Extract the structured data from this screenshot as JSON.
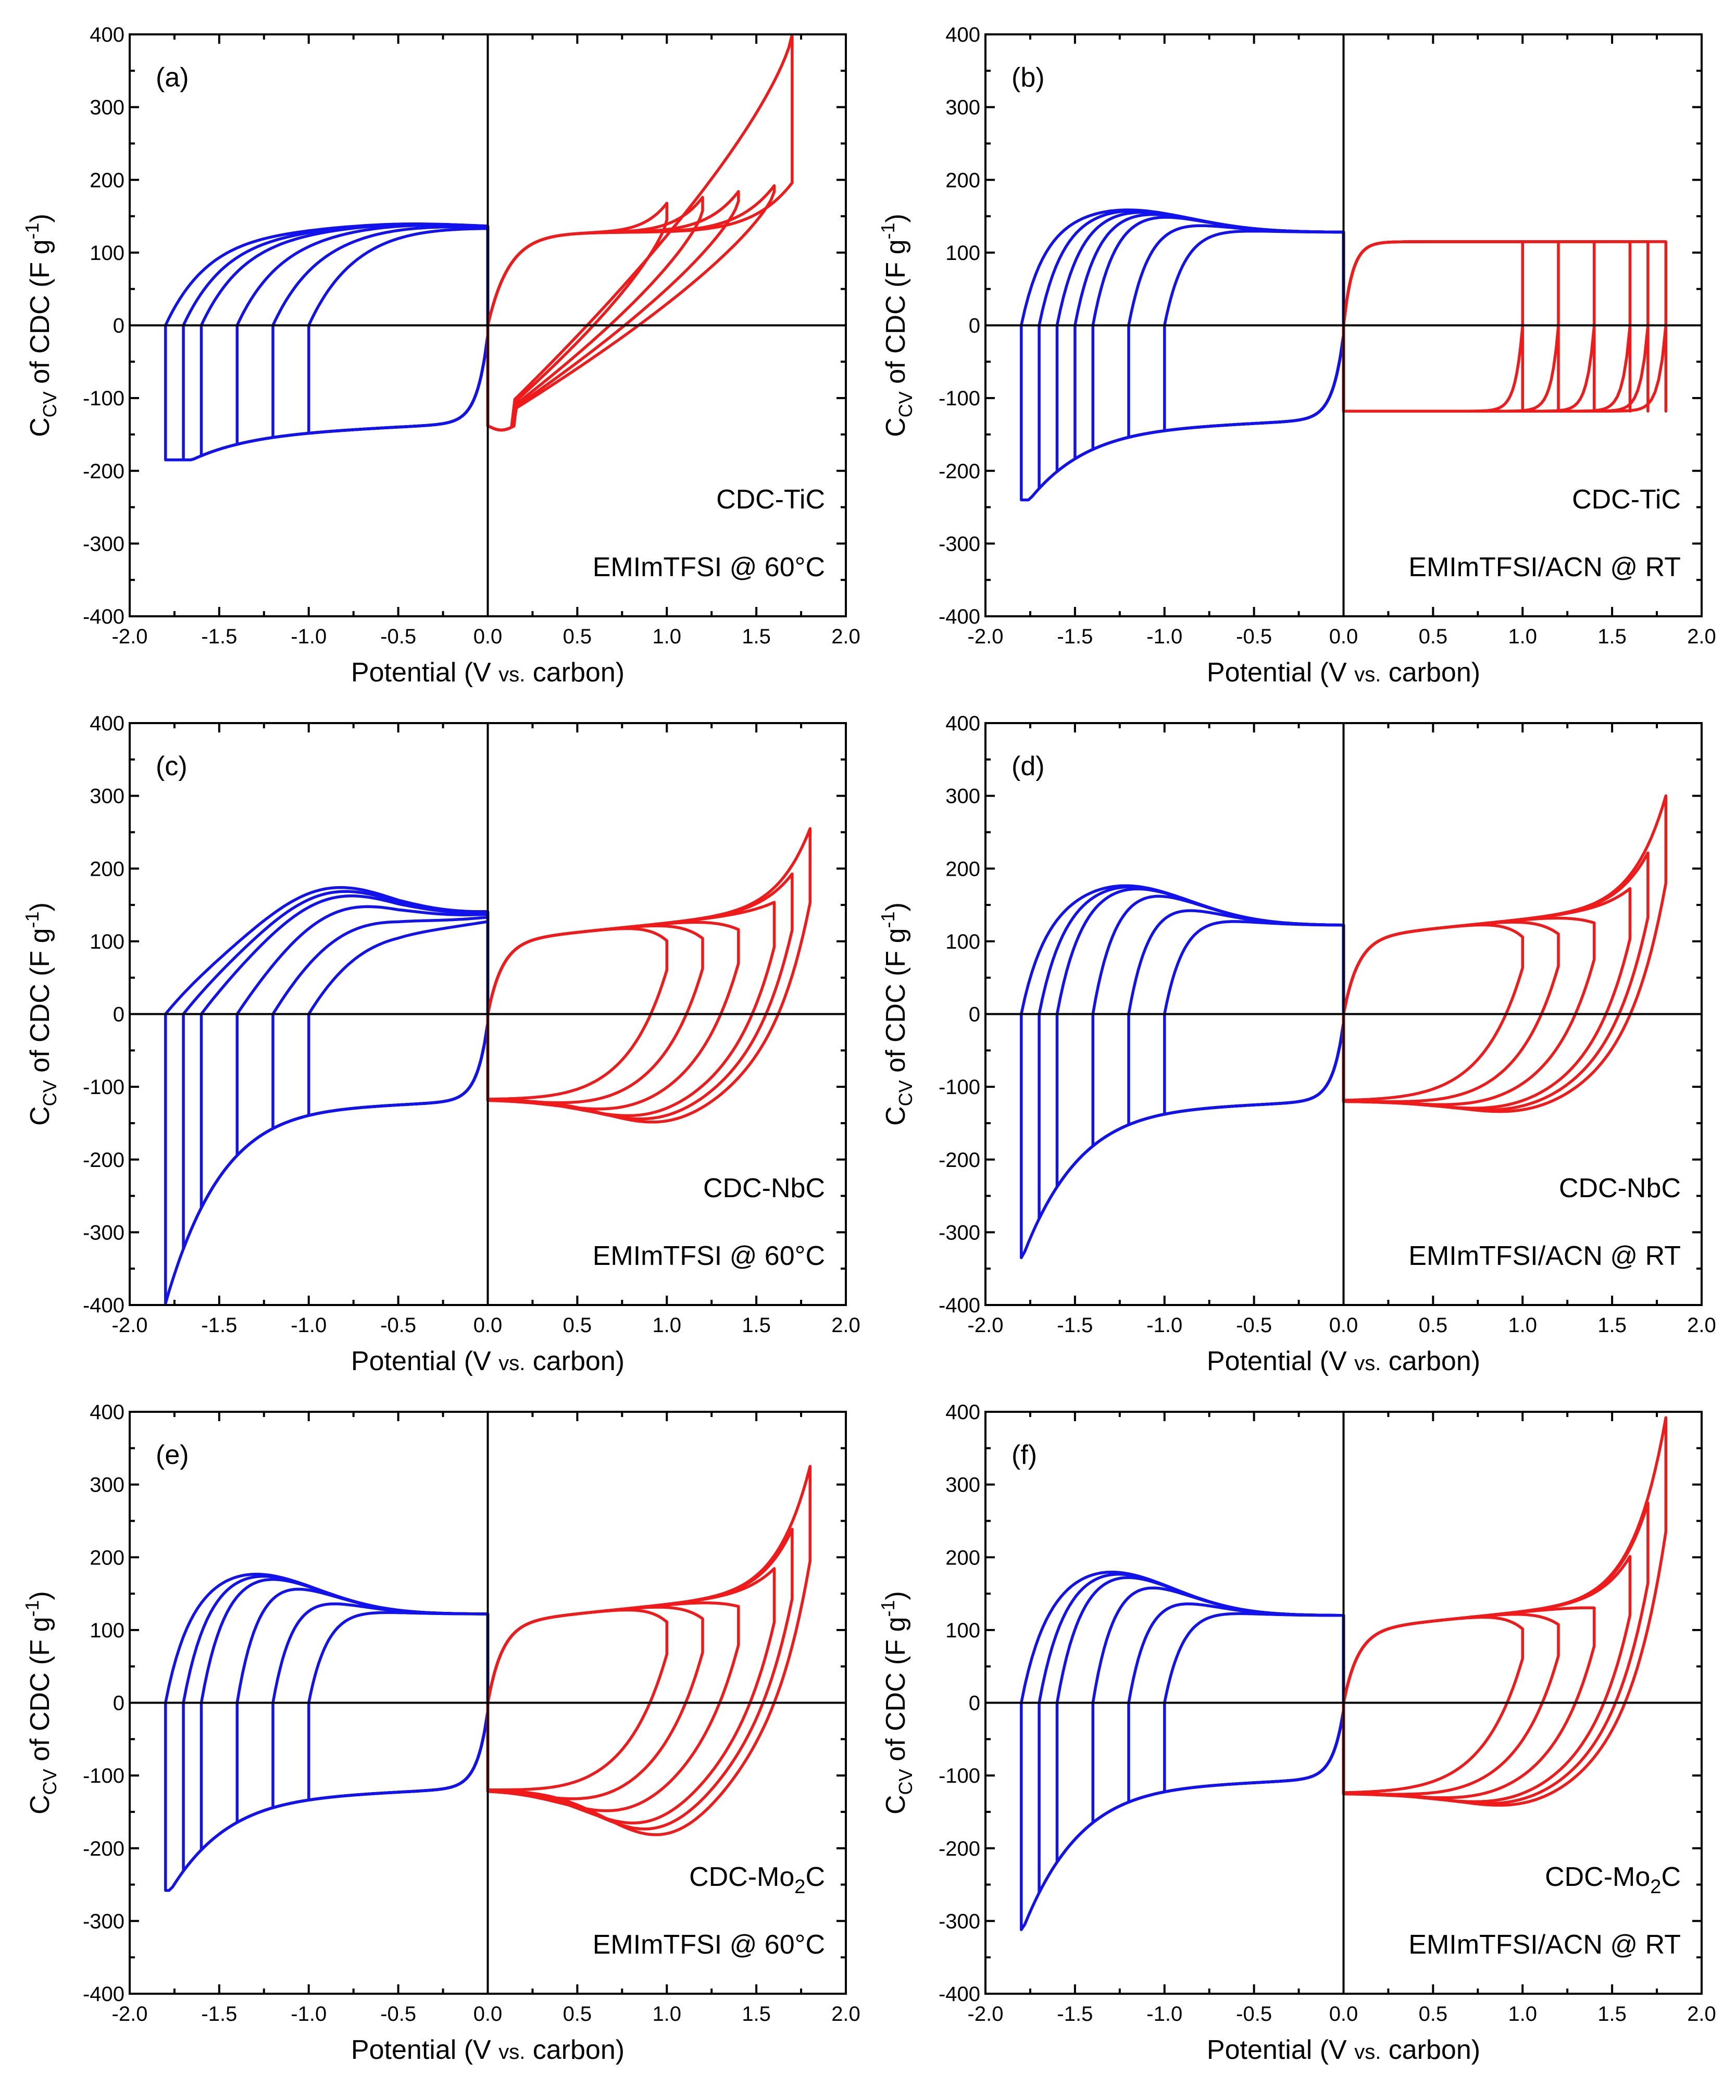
{
  "colors": {
    "negative": "#1212ee",
    "positive": "#f01a1a",
    "axis": "#000000"
  },
  "chart_data": [
    {
      "type": "line",
      "panel": "(a)",
      "material": "CDC-TiC",
      "electrolyte": "EMImTFSI @ 60°C",
      "xlabel_main": "Potential (V ",
      "xlabel_small": "vs.",
      "xlabel_end": " carbon)",
      "ylabel": "C_CV of CDC (F g^-1)",
      "xlim": [
        -2.0,
        2.0
      ],
      "ylim": [
        -400,
        400
      ],
      "xticks": [
        "-2.0",
        "-1.5",
        "-1.0",
        "-0.5",
        "0.0",
        "0.5",
        "1.0",
        "1.5",
        "2.0"
      ],
      "yticks": [
        "400",
        "300",
        "200",
        "100",
        "0",
        "-100",
        "-200",
        "-300",
        "-400"
      ],
      "neg_limits": [
        -1.0,
        -1.2,
        -1.4,
        -1.6,
        -1.7,
        -1.8
      ],
      "pos_limits": [
        1.0,
        1.2,
        1.4,
        1.6,
        1.7
      ],
      "neg": {
        "Cp": 133,
        "Cn": -135,
        "peak": 140,
        "peakX": -0.45,
        "endLo": -185,
        "knee": 0.25,
        "tail": 18
      },
      "pos": {
        "Cp": 128,
        "Cn": -138,
        "endHi": 400,
        "resistive": true
      }
    },
    {
      "type": "line",
      "panel": "(b)",
      "material": "CDC-TiC",
      "electrolyte": "EMImTFSI/ACN @ RT",
      "xlabel_main": "Potential (V ",
      "xlabel_small": "vs.",
      "xlabel_end": " carbon)",
      "ylabel": "C_CV of CDC (F g^-1)",
      "xlim": [
        -2.0,
        2.0
      ],
      "ylim": [
        -400,
        400
      ],
      "xticks": [
        "-2.0",
        "-1.5",
        "-1.0",
        "-0.5",
        "0.0",
        "0.5",
        "1.0",
        "1.5",
        "2.0"
      ],
      "yticks": [
        "400",
        "300",
        "200",
        "100",
        "0",
        "-100",
        "-200",
        "-300",
        "-400"
      ],
      "neg_limits": [
        -1.0,
        -1.2,
        -1.4,
        -1.5,
        -1.6,
        -1.7,
        -1.8
      ],
      "pos_limits": [
        1.0,
        1.2,
        1.4,
        1.6,
        1.7,
        1.8
      ],
      "neg": {
        "Cp": 128,
        "Cn": -130,
        "peak": 160,
        "peakX": -1.25,
        "endLo": -240,
        "knee": 0.12,
        "tail": 20
      },
      "pos": {
        "Cp": 115,
        "Cn": -118,
        "endHi": 118,
        "rect": true
      }
    },
    {
      "type": "line",
      "panel": "(c)",
      "material": "CDC-NbC",
      "electrolyte": "EMImTFSI @ 60°C",
      "xlabel_main": "Potential (V ",
      "xlabel_small": "vs.",
      "xlabel_end": " carbon)",
      "ylabel": "C_CV of CDC (F g^-1)",
      "xlim": [
        -2.0,
        2.0
      ],
      "ylim": [
        -400,
        400
      ],
      "xticks": [
        "-2.0",
        "-1.5",
        "-1.0",
        "-0.5",
        "0.0",
        "0.5",
        "1.0",
        "1.5",
        "2.0"
      ],
      "yticks": [
        "400",
        "300",
        "200",
        "100",
        "0",
        "-100",
        "-200",
        "-300",
        "-400"
      ],
      "neg_limits": [
        -1.0,
        -1.2,
        -1.4,
        -1.6,
        -1.7,
        -1.8
      ],
      "pos_limits": [
        1.0,
        1.2,
        1.4,
        1.6,
        1.7,
        1.8
      ],
      "neg": {
        "Cp": 130,
        "Cn": -120,
        "peak": 200,
        "peakX": -0.95,
        "endLo": -400,
        "knee": 0.45,
        "tail": 40,
        "slow": true
      },
      "pos": {
        "Cp": 100,
        "Cn": -118,
        "endHi": 255,
        "dip": -155
      }
    },
    {
      "type": "line",
      "panel": "(d)",
      "material": "CDC-NbC",
      "electrolyte": "EMImTFSI/ACN @ RT",
      "xlabel_main": "Potential (V ",
      "xlabel_small": "vs.",
      "xlabel_end": " carbon)",
      "ylabel": "C_CV of CDC (F g^-1)",
      "xlim": [
        -2.0,
        2.0
      ],
      "ylim": [
        -400,
        400
      ],
      "xticks": [
        "-2.0",
        "-1.5",
        "-1.0",
        "-0.5",
        "0.0",
        "0.5",
        "1.0",
        "1.5",
        "2.0"
      ],
      "yticks": [
        "400",
        "300",
        "200",
        "100",
        "0",
        "-100",
        "-200",
        "-300",
        "-400"
      ],
      "neg_limits": [
        -1.0,
        -1.2,
        -1.4,
        -1.6,
        -1.7,
        -1.8
      ],
      "pos_limits": [
        1.0,
        1.2,
        1.4,
        1.6,
        1.7,
        1.8
      ],
      "neg": {
        "Cp": 122,
        "Cn": -120,
        "peak": 178,
        "peakX": -1.25,
        "endLo": -335,
        "knee": 0.12,
        "tail": 20
      },
      "pos": {
        "Cp": 105,
        "Cn": -120,
        "endHi": 300,
        "dip": -140
      }
    },
    {
      "type": "line",
      "panel": "(e)",
      "material": "CDC-Mo2C",
      "electrolyte": "EMImTFSI @ 60°C",
      "xlabel_main": "Potential (V ",
      "xlabel_small": "vs.",
      "xlabel_end": " carbon)",
      "ylabel": "C_CV of CDC (F g^-1)",
      "xlim": [
        -2.0,
        2.0
      ],
      "ylim": [
        -400,
        400
      ],
      "xticks": [
        "-2.0",
        "-1.5",
        "-1.0",
        "-0.5",
        "0.0",
        "0.5",
        "1.0",
        "1.5",
        "2.0"
      ],
      "yticks": [
        "400",
        "300",
        "200",
        "100",
        "0",
        "-100",
        "-200",
        "-300",
        "-400"
      ],
      "neg_limits": [
        -1.0,
        -1.2,
        -1.4,
        -1.6,
        -1.7,
        -1.8
      ],
      "pos_limits": [
        1.0,
        1.2,
        1.4,
        1.6,
        1.7,
        1.8
      ],
      "neg": {
        "Cp": 122,
        "Cn": -118,
        "peak": 180,
        "peakX": -1.35,
        "endLo": -258,
        "knee": 0.12,
        "tail": 20
      },
      "pos": {
        "Cp": 110,
        "Cn": -120,
        "endHi": 325,
        "dip": -190
      }
    },
    {
      "type": "line",
      "panel": "(f)",
      "material": "CDC-Mo2C",
      "electrolyte": "EMImTFSI/ACN @ RT",
      "xlabel_main": "Potential (V ",
      "xlabel_small": "vs.",
      "xlabel_end": " carbon)",
      "ylabel": "C_CV of CDC (F g^-1)",
      "xlim": [
        -2.0,
        2.0
      ],
      "ylim": [
        -400,
        400
      ],
      "xticks": [
        "-2.0",
        "-1.5",
        "-1.0",
        "-0.5",
        "0.0",
        "0.5",
        "1.0",
        "1.5",
        "2.0"
      ],
      "yticks": [
        "400",
        "300",
        "200",
        "100",
        "0",
        "-100",
        "-200",
        "-300",
        "-400"
      ],
      "neg_limits": [
        -1.0,
        -1.2,
        -1.4,
        -1.6,
        -1.7,
        -1.8
      ],
      "pos_limits": [
        1.0,
        1.2,
        1.4,
        1.6,
        1.7,
        1.8
      ],
      "neg": {
        "Cp": 120,
        "Cn": -105,
        "peak": 183,
        "peakX": -1.35,
        "endLo": -312,
        "knee": 0.12,
        "tail": 20
      },
      "pos": {
        "Cp": 100,
        "Cn": -125,
        "endHi": 392,
        "dip": -148
      }
    }
  ]
}
